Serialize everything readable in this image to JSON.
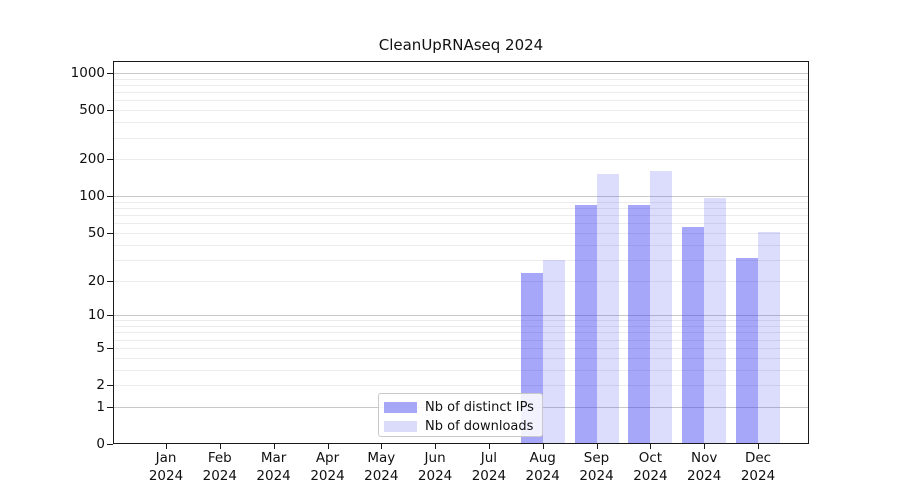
{
  "title": "CleanUpRNAseq 2024",
  "legend": {
    "items": [
      {
        "label": "Nb of distinct IPs",
        "color": "#a7a7f7"
      },
      {
        "label": "Nb of downloads",
        "color": "#dbdbfa"
      }
    ]
  },
  "chart_data": {
    "type": "bar",
    "title": "CleanUpRNAseq 2024",
    "categories": [
      "Jan 2024",
      "Feb 2024",
      "Mar 2024",
      "Apr 2024",
      "May 2024",
      "Jun 2024",
      "Jul 2024",
      "Aug 2024",
      "Sep 2024",
      "Oct 2024",
      "Nov 2024",
      "Dec 2024"
    ],
    "series": [
      {
        "name": "Nb of distinct IPs",
        "color": "#a7a7f7",
        "fill_rgba": "rgba(60,60,245,0.45)",
        "values": [
          0,
          0,
          0,
          0,
          0,
          0,
          0,
          23,
          84,
          84,
          56,
          31
        ]
      },
      {
        "name": "Nb of downloads",
        "color": "#dbdbfa",
        "fill_rgba": "rgba(60,60,245,0.18)",
        "values": [
          0,
          0,
          0,
          0,
          0,
          0,
          0,
          30,
          153,
          160,
          97,
          51
        ]
      }
    ],
    "yticks": [
      0,
      1,
      2,
      5,
      10,
      20,
      50,
      100,
      200,
      500,
      1000
    ],
    "yscale": "log1p",
    "ylim": [
      0,
      1250
    ],
    "grid": true,
    "legend_position": "lower center inside",
    "axis_color": "#1a1a1a",
    "grid_major_color": "#c9c9c9",
    "grid_minor_color": "#ececec",
    "background_color": "#ffffff"
  }
}
